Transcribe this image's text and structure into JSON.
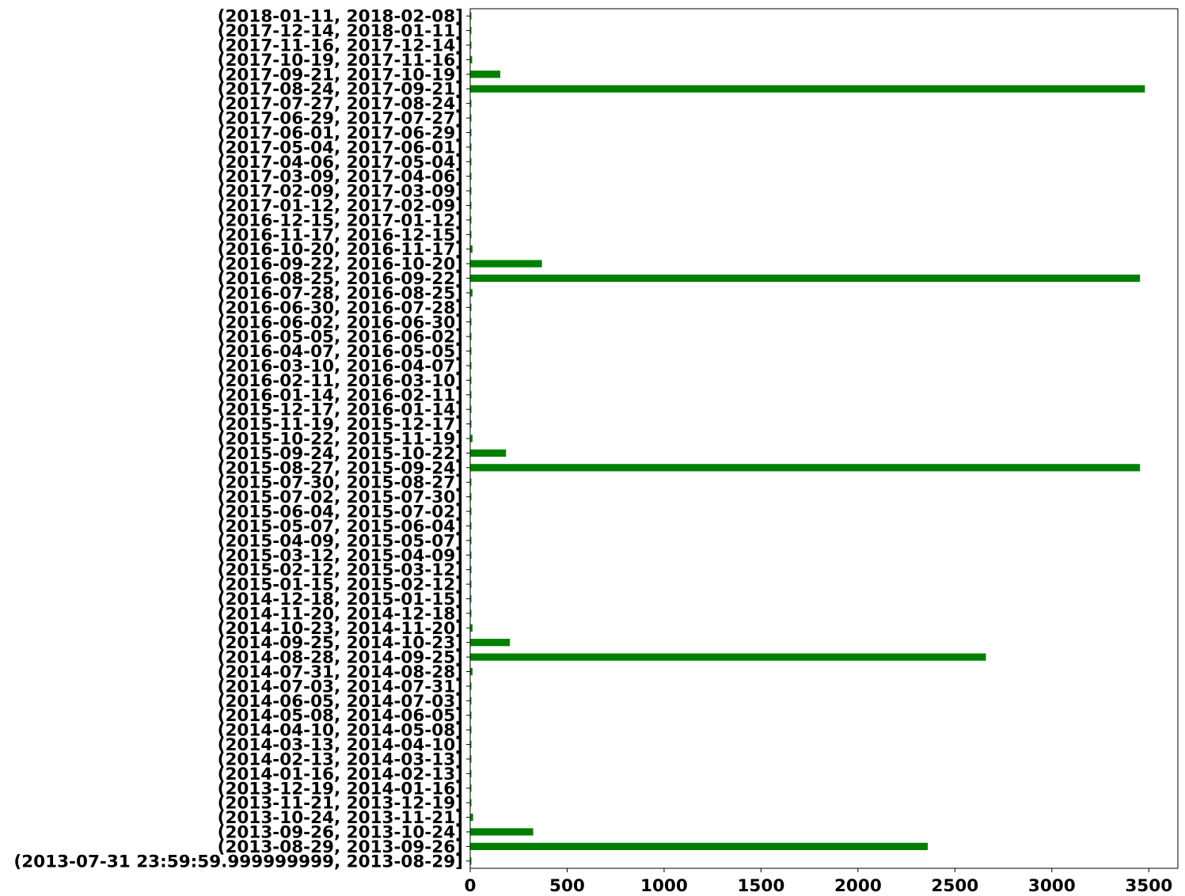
{
  "chart_data": {
    "type": "bar",
    "orientation": "horizontal",
    "color": "#008000",
    "title": "",
    "xlabel": "",
    "ylabel": "",
    "xlim": [
      0,
      3650
    ],
    "xticks": [
      "0",
      "500",
      "1000",
      "1500",
      "2000",
      "2500",
      "3000",
      "3500"
    ],
    "grid": false,
    "categories": [
      "(2013-07-31 23:59:59.999999999, 2013-08-29]",
      "(2013-08-29, 2013-09-26]",
      "(2013-09-26, 2013-10-24]",
      "(2013-10-24, 2013-11-21]",
      "(2013-11-21, 2013-12-19]",
      "(2013-12-19, 2014-01-16]",
      "(2014-01-16, 2014-02-13]",
      "(2014-02-13, 2014-03-13]",
      "(2014-03-13, 2014-04-10]",
      "(2014-04-10, 2014-05-08]",
      "(2014-05-08, 2014-06-05]",
      "(2014-06-05, 2014-07-03]",
      "(2014-07-03, 2014-07-31]",
      "(2014-07-31, 2014-08-28]",
      "(2014-08-28, 2014-09-25]",
      "(2014-09-25, 2014-10-23]",
      "(2014-10-23, 2014-11-20]",
      "(2014-11-20, 2014-12-18]",
      "(2014-12-18, 2015-01-15]",
      "(2015-01-15, 2015-02-12]",
      "(2015-02-12, 2015-03-12]",
      "(2015-03-12, 2015-04-09]",
      "(2015-04-09, 2015-05-07]",
      "(2015-05-07, 2015-06-04]",
      "(2015-06-04, 2015-07-02]",
      "(2015-07-02, 2015-07-30]",
      "(2015-07-30, 2015-08-27]",
      "(2015-08-27, 2015-09-24]",
      "(2015-09-24, 2015-10-22]",
      "(2015-10-22, 2015-11-19]",
      "(2015-11-19, 2015-12-17]",
      "(2015-12-17, 2016-01-14]",
      "(2016-01-14, 2016-02-11]",
      "(2016-02-11, 2016-03-10]",
      "(2016-03-10, 2016-04-07]",
      "(2016-04-07, 2016-05-05]",
      "(2016-05-05, 2016-06-02]",
      "(2016-06-02, 2016-06-30]",
      "(2016-06-30, 2016-07-28]",
      "(2016-07-28, 2016-08-25]",
      "(2016-08-25, 2016-09-22]",
      "(2016-09-22, 2016-10-20]",
      "(2016-10-20, 2016-11-17]",
      "(2016-11-17, 2016-12-15]",
      "(2016-12-15, 2017-01-12]",
      "(2017-01-12, 2017-02-09]",
      "(2017-02-09, 2017-03-09]",
      "(2017-03-09, 2017-04-06]",
      "(2017-04-06, 2017-05-04]",
      "(2017-05-04, 2017-06-01]",
      "(2017-06-01, 2017-06-29]",
      "(2017-06-29, 2017-07-27]",
      "(2017-07-27, 2017-08-24]",
      "(2017-08-24, 2017-09-21]",
      "(2017-09-21, 2017-10-19]",
      "(2017-10-19, 2017-11-16]",
      "(2017-11-16, 2017-12-14]",
      "(2017-12-14, 2018-01-11]",
      "(2018-01-11, 2018-02-08]"
    ],
    "values": [
      5,
      2360,
      325,
      15,
      2,
      2,
      3,
      6,
      2,
      2,
      2,
      2,
      3,
      12,
      2660,
      205,
      12,
      3,
      2,
      2,
      2,
      2,
      2,
      2,
      2,
      2,
      5,
      3455,
      185,
      12,
      3,
      2,
      2,
      2,
      2,
      2,
      2,
      2,
      3,
      12,
      3455,
      370,
      12,
      3,
      2,
      2,
      2,
      2,
      2,
      2,
      2,
      2,
      5,
      3480,
      155,
      10,
      3,
      2,
      2
    ]
  }
}
